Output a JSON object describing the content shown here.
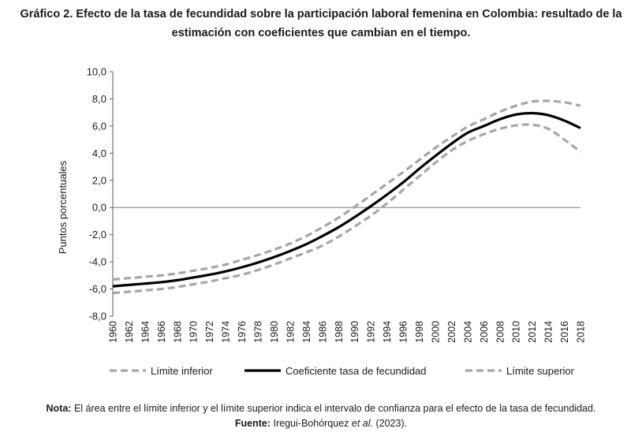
{
  "title": {
    "line1": "Gráfico 2. Efecto de la tasa de fecundidad sobre la participación laboral femenina en Colombia: resultado de la",
    "line2": "estimación con coeficientes que cambian en el tiempo."
  },
  "chart_data": {
    "type": "line",
    "title": "Efecto de la tasa de fecundidad sobre la participación laboral femenina en Colombia",
    "xlabel": "",
    "ylabel": "Puntos porcentuales",
    "ylim": [
      -8,
      10
    ],
    "ytick_step": 2,
    "ytick_labels": [
      "-8,0",
      "-6,0",
      "-4,0",
      "-2,0",
      "0,0",
      "2,0",
      "4,0",
      "6,0",
      "8,0",
      "10,0"
    ],
    "x_tick_labels": [
      "1960",
      "1962",
      "1964",
      "1966",
      "1968",
      "1970",
      "1972",
      "1974",
      "1976",
      "1978",
      "1980",
      "1982",
      "1984",
      "1986",
      "1988",
      "1990",
      "1992",
      "1994",
      "1996",
      "1998",
      "2000",
      "2002",
      "2004",
      "2006",
      "2008",
      "2010",
      "2012",
      "2014",
      "2016",
      "2018"
    ],
    "x": [
      1960,
      1962,
      1964,
      1966,
      1968,
      1970,
      1972,
      1974,
      1976,
      1978,
      1980,
      1982,
      1984,
      1986,
      1988,
      1990,
      1992,
      1994,
      1996,
      1998,
      2000,
      2002,
      2004,
      2006,
      2008,
      2010,
      2012,
      2014,
      2016,
      2018
    ],
    "legend_position": "bottom",
    "series": [
      {
        "name": "Límite inferior",
        "style": "dashed",
        "color": "#a6a6a6",
        "values": [
          -6.3,
          -6.2,
          -6.1,
          -6.0,
          -5.85,
          -5.65,
          -5.45,
          -5.2,
          -4.95,
          -4.6,
          -4.2,
          -3.75,
          -3.3,
          -2.8,
          -2.15,
          -1.4,
          -0.6,
          0.3,
          1.3,
          2.3,
          3.3,
          4.2,
          4.9,
          5.4,
          5.8,
          6.05,
          6.1,
          5.8,
          5.0,
          4.1
        ]
      },
      {
        "name": "Coeficiente tasa de fecundidad",
        "style": "solid",
        "color": "#000000",
        "values": [
          -5.8,
          -5.7,
          -5.6,
          -5.5,
          -5.35,
          -5.15,
          -4.95,
          -4.7,
          -4.4,
          -4.05,
          -3.65,
          -3.2,
          -2.7,
          -2.1,
          -1.45,
          -0.7,
          0.1,
          0.95,
          1.85,
          2.85,
          3.8,
          4.7,
          5.5,
          6.0,
          6.5,
          6.85,
          6.95,
          6.8,
          6.4,
          5.85
        ]
      },
      {
        "name": "Límite superior",
        "style": "dashed",
        "color": "#a6a6a6",
        "values": [
          -5.3,
          -5.2,
          -5.1,
          -5.0,
          -4.85,
          -4.65,
          -4.45,
          -4.2,
          -3.85,
          -3.5,
          -3.1,
          -2.65,
          -2.1,
          -1.45,
          -0.75,
          0.05,
          0.9,
          1.75,
          2.6,
          3.5,
          4.4,
          5.2,
          5.95,
          6.5,
          7.05,
          7.5,
          7.8,
          7.85,
          7.75,
          7.5
        ]
      }
    ]
  },
  "note": {
    "nota_label": "Nota:",
    "nota_text": " El área entre el límite inferior y el límite superior indica el intervalo de confianza para el efecto de la tasa de fecundidad.",
    "fuente_label": "Fuente:",
    "fuente_text": " Iregui-Bohórquez ",
    "fuente_etal": "et al.",
    "fuente_year": " (2023)."
  }
}
